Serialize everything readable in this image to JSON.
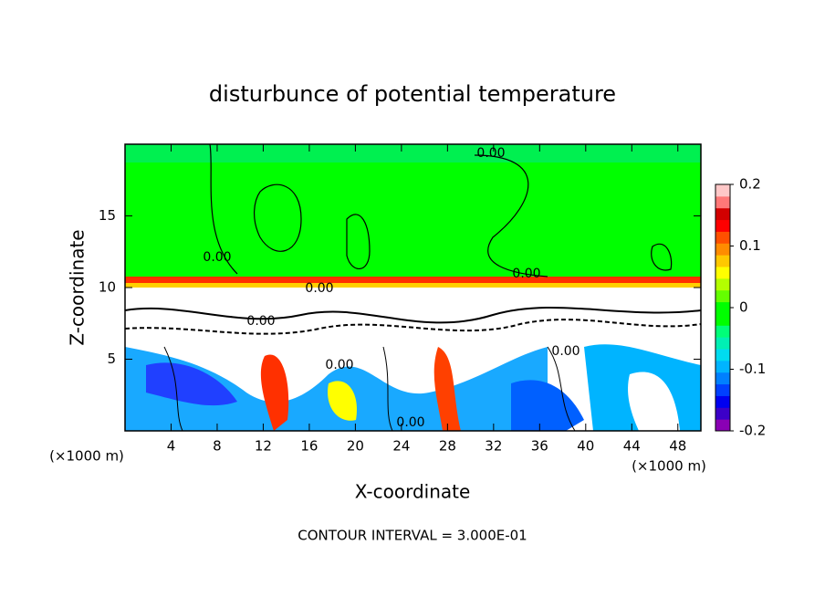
{
  "chart_data": {
    "type": "contour",
    "title": "disturbunce of potential temperature",
    "x_label": "X-coordinate",
    "y_label": "Z-coordinate",
    "x_unit_label": "(×1000 m)",
    "x_unit_label_right": "(×1000 m)",
    "footer": "CONTOUR INTERVAL = 3.000E-01",
    "xlim": [
      0,
      50
    ],
    "ylim": [
      0,
      20
    ],
    "xticks": [
      4,
      8,
      12,
      16,
      20,
      24,
      28,
      32,
      36,
      40,
      44,
      48
    ],
    "yticks": [
      5,
      10,
      15
    ],
    "clim": [
      -0.2,
      0.2
    ],
    "cticks": [
      -0.2,
      -0.1,
      0,
      0.1,
      0.2
    ],
    "colorbar_colors": [
      "#8a00b4",
      "#3c00c8",
      "#0000f0",
      "#0040ff",
      "#0080ff",
      "#00b4ff",
      "#00dcf0",
      "#00f0b4",
      "#00ff78",
      "#00ff00",
      "#00ff00",
      "#64ff00",
      "#b4ff00",
      "#ffff00",
      "#ffc800",
      "#ff8c00",
      "#ff5000",
      "#ff0000",
      "#d20000",
      "#ff7878",
      "#ffc8c8"
    ],
    "contour_labels": [
      "0.00",
      "0.00",
      "0.00",
      "0.00",
      "0.00",
      "0.00",
      "0.00",
      "0.00"
    ]
  }
}
